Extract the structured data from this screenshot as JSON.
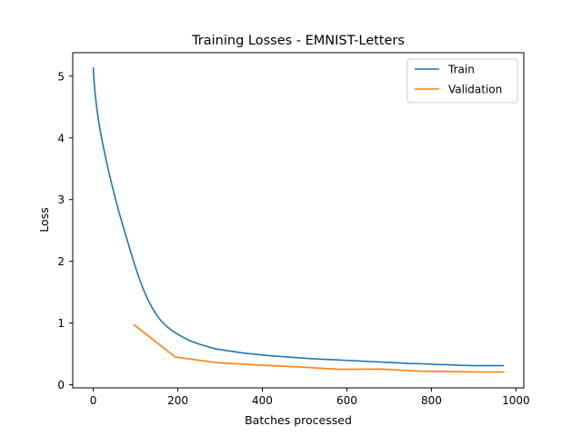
{
  "chart_data": {
    "type": "line",
    "title": "Training Losses - EMNIST-Letters",
    "xlabel": "Batches processed",
    "ylabel": "Loss",
    "xlim": [
      -48.5,
      1018.5
    ],
    "ylim": [
      -0.05,
      5.38
    ],
    "xticks": [
      0,
      200,
      400,
      600,
      800,
      1000
    ],
    "yticks": [
      0,
      1,
      2,
      3,
      4,
      5
    ],
    "grid": false,
    "legend_position": "top-right",
    "series": [
      {
        "name": "Train",
        "color": "#1f77b4",
        "x": [
          0,
          2,
          5,
          8,
          12,
          17,
          22,
          28,
          35,
          42,
          50,
          60,
          70,
          80,
          90,
          100,
          110,
          120,
          130,
          140,
          150,
          160,
          170,
          180,
          190,
          200,
          215,
          230,
          250,
          270,
          290,
          310,
          330,
          360,
          390,
          420,
          450,
          480,
          510,
          540,
          570,
          600,
          630,
          660,
          690,
          720,
          750,
          780,
          810,
          840,
          870,
          900,
          930,
          970
        ],
        "y": [
          5.13,
          4.9,
          4.68,
          4.5,
          4.3,
          4.1,
          3.92,
          3.72,
          3.5,
          3.3,
          3.08,
          2.82,
          2.58,
          2.35,
          2.12,
          1.9,
          1.7,
          1.52,
          1.37,
          1.24,
          1.13,
          1.04,
          0.97,
          0.91,
          0.86,
          0.82,
          0.76,
          0.71,
          0.66,
          0.62,
          0.58,
          0.56,
          0.54,
          0.51,
          0.49,
          0.47,
          0.455,
          0.44,
          0.425,
          0.415,
          0.405,
          0.395,
          0.385,
          0.375,
          0.365,
          0.355,
          0.345,
          0.34,
          0.33,
          0.325,
          0.315,
          0.31,
          0.31,
          0.31
        ]
      },
      {
        "name": "Validation",
        "color": "#ff7f0e",
        "x": [
          97,
          194,
          291,
          388,
          485,
          582,
          679,
          776,
          873,
          970
        ],
        "y": [
          0.97,
          0.45,
          0.36,
          0.32,
          0.29,
          0.25,
          0.255,
          0.22,
          0.21,
          0.205
        ]
      }
    ]
  }
}
